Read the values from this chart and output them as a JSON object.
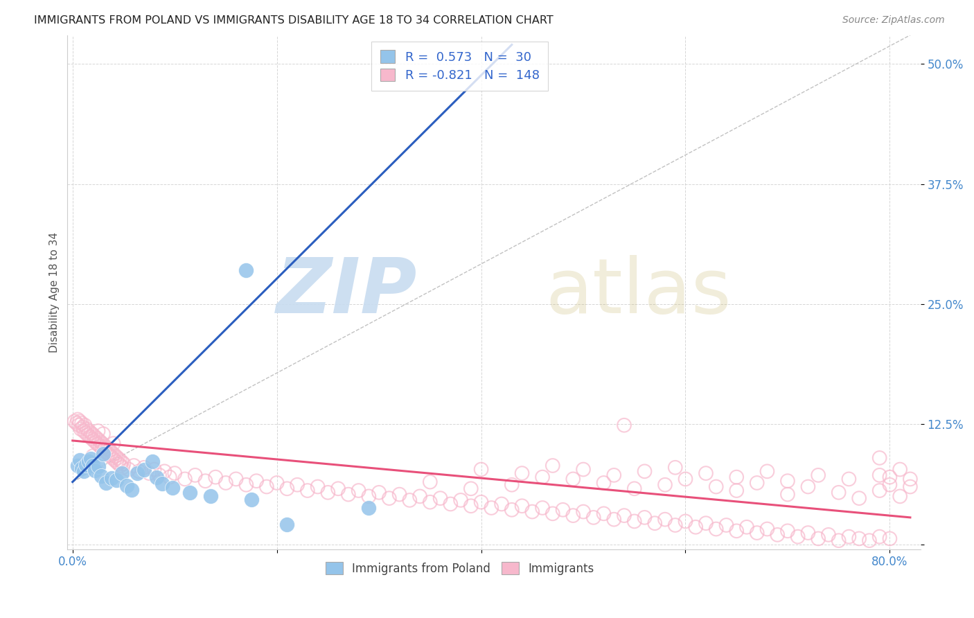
{
  "title": "IMMIGRANTS FROM POLAND VS IMMIGRANTS DISABILITY AGE 18 TO 34 CORRELATION CHART",
  "source": "Source: ZipAtlas.com",
  "ylabel": "Disability Age 18 to 34",
  "x_ticks": [
    0.0,
    0.2,
    0.4,
    0.6,
    0.8
  ],
  "x_tick_labels": [
    "0.0%",
    "",
    "",
    "",
    "80.0%"
  ],
  "y_tick_labels": [
    "",
    "12.5%",
    "25.0%",
    "37.5%",
    "50.0%"
  ],
  "y_ticks": [
    0.0,
    0.125,
    0.25,
    0.375,
    0.5
  ],
  "xlim": [
    -0.005,
    0.83
  ],
  "ylim": [
    -0.005,
    0.53
  ],
  "legend_label_1": "Immigrants from Poland",
  "legend_label_2": "Immigrants",
  "r1": 0.573,
  "n1": 30,
  "r2": -0.821,
  "n2": 148,
  "color_blue": "#94C4EA",
  "color_pink": "#F7B8CC",
  "line_blue": "#2B5EBF",
  "line_pink": "#E8507A",
  "grid_color": "#CCCCCC",
  "background_color": "#FFFFFF",
  "blue_scatter": [
    [
      0.005,
      0.082
    ],
    [
      0.007,
      0.088
    ],
    [
      0.009,
      0.079
    ],
    [
      0.011,
      0.076
    ],
    [
      0.013,
      0.083
    ],
    [
      0.016,
      0.086
    ],
    [
      0.018,
      0.089
    ],
    [
      0.02,
      0.082
    ],
    [
      0.022,
      0.077
    ],
    [
      0.025,
      0.081
    ],
    [
      0.028,
      0.071
    ],
    [
      0.03,
      0.094
    ],
    [
      0.033,
      0.064
    ],
    [
      0.038,
      0.069
    ],
    [
      0.043,
      0.067
    ],
    [
      0.048,
      0.074
    ],
    [
      0.053,
      0.061
    ],
    [
      0.058,
      0.057
    ],
    [
      0.063,
      0.074
    ],
    [
      0.07,
      0.078
    ],
    [
      0.078,
      0.086
    ],
    [
      0.082,
      0.07
    ],
    [
      0.088,
      0.063
    ],
    [
      0.098,
      0.059
    ],
    [
      0.115,
      0.054
    ],
    [
      0.135,
      0.05
    ],
    [
      0.175,
      0.047
    ],
    [
      0.21,
      0.021
    ],
    [
      0.29,
      0.038
    ],
    [
      0.17,
      0.285
    ]
  ],
  "pink_scatter_dense": [
    [
      0.002,
      0.128
    ],
    [
      0.004,
      0.126
    ],
    [
      0.005,
      0.13
    ],
    [
      0.006,
      0.124
    ],
    [
      0.007,
      0.128
    ],
    [
      0.008,
      0.12
    ],
    [
      0.009,
      0.126
    ],
    [
      0.01,
      0.122
    ],
    [
      0.011,
      0.118
    ],
    [
      0.012,
      0.124
    ],
    [
      0.013,
      0.116
    ],
    [
      0.014,
      0.12
    ],
    [
      0.015,
      0.114
    ],
    [
      0.016,
      0.118
    ],
    [
      0.017,
      0.112
    ],
    [
      0.018,
      0.116
    ],
    [
      0.019,
      0.11
    ],
    [
      0.02,
      0.114
    ],
    [
      0.021,
      0.108
    ],
    [
      0.022,
      0.112
    ],
    [
      0.023,
      0.106
    ],
    [
      0.024,
      0.11
    ],
    [
      0.025,
      0.104
    ],
    [
      0.026,
      0.108
    ],
    [
      0.027,
      0.102
    ],
    [
      0.028,
      0.106
    ],
    [
      0.029,
      0.1
    ],
    [
      0.03,
      0.104
    ],
    [
      0.031,
      0.098
    ],
    [
      0.032,
      0.102
    ],
    [
      0.033,
      0.096
    ],
    [
      0.034,
      0.1
    ],
    [
      0.035,
      0.094
    ],
    [
      0.036,
      0.098
    ],
    [
      0.037,
      0.092
    ],
    [
      0.038,
      0.096
    ],
    [
      0.039,
      0.09
    ],
    [
      0.04,
      0.094
    ],
    [
      0.041,
      0.088
    ],
    [
      0.042,
      0.092
    ],
    [
      0.043,
      0.086
    ],
    [
      0.044,
      0.09
    ],
    [
      0.045,
      0.084
    ],
    [
      0.046,
      0.088
    ],
    [
      0.047,
      0.082
    ],
    [
      0.048,
      0.086
    ],
    [
      0.049,
      0.08
    ],
    [
      0.05,
      0.084
    ],
    [
      0.055,
      0.078
    ],
    [
      0.06,
      0.082
    ],
    [
      0.065,
      0.076
    ],
    [
      0.07,
      0.08
    ],
    [
      0.075,
      0.074
    ],
    [
      0.08,
      0.078
    ],
    [
      0.085,
      0.072
    ],
    [
      0.09,
      0.076
    ],
    [
      0.095,
      0.07
    ],
    [
      0.1,
      0.074
    ],
    [
      0.11,
      0.068
    ],
    [
      0.12,
      0.072
    ],
    [
      0.13,
      0.066
    ],
    [
      0.14,
      0.07
    ],
    [
      0.15,
      0.064
    ],
    [
      0.16,
      0.068
    ],
    [
      0.17,
      0.062
    ],
    [
      0.18,
      0.066
    ],
    [
      0.19,
      0.06
    ],
    [
      0.2,
      0.064
    ],
    [
      0.21,
      0.058
    ],
    [
      0.22,
      0.062
    ],
    [
      0.23,
      0.056
    ],
    [
      0.24,
      0.06
    ],
    [
      0.25,
      0.054
    ],
    [
      0.26,
      0.058
    ],
    [
      0.27,
      0.052
    ],
    [
      0.28,
      0.056
    ],
    [
      0.29,
      0.05
    ],
    [
      0.3,
      0.054
    ],
    [
      0.31,
      0.048
    ],
    [
      0.32,
      0.052
    ],
    [
      0.33,
      0.046
    ],
    [
      0.34,
      0.05
    ],
    [
      0.35,
      0.044
    ],
    [
      0.36,
      0.048
    ],
    [
      0.37,
      0.042
    ],
    [
      0.38,
      0.046
    ],
    [
      0.39,
      0.04
    ],
    [
      0.4,
      0.044
    ],
    [
      0.41,
      0.038
    ],
    [
      0.42,
      0.042
    ],
    [
      0.43,
      0.036
    ],
    [
      0.44,
      0.04
    ],
    [
      0.45,
      0.034
    ],
    [
      0.46,
      0.038
    ],
    [
      0.47,
      0.032
    ],
    [
      0.48,
      0.036
    ],
    [
      0.49,
      0.03
    ],
    [
      0.5,
      0.034
    ],
    [
      0.51,
      0.028
    ],
    [
      0.52,
      0.032
    ],
    [
      0.53,
      0.026
    ],
    [
      0.54,
      0.03
    ],
    [
      0.55,
      0.024
    ],
    [
      0.56,
      0.028
    ],
    [
      0.57,
      0.022
    ],
    [
      0.58,
      0.026
    ],
    [
      0.59,
      0.02
    ],
    [
      0.6,
      0.024
    ],
    [
      0.61,
      0.018
    ],
    [
      0.62,
      0.022
    ],
    [
      0.63,
      0.016
    ],
    [
      0.64,
      0.02
    ],
    [
      0.65,
      0.014
    ],
    [
      0.66,
      0.018
    ],
    [
      0.67,
      0.012
    ],
    [
      0.68,
      0.016
    ],
    [
      0.69,
      0.01
    ],
    [
      0.7,
      0.014
    ],
    [
      0.71,
      0.008
    ],
    [
      0.72,
      0.012
    ],
    [
      0.73,
      0.006
    ],
    [
      0.74,
      0.01
    ],
    [
      0.75,
      0.004
    ],
    [
      0.76,
      0.008
    ],
    [
      0.77,
      0.006
    ],
    [
      0.78,
      0.004
    ],
    [
      0.79,
      0.008
    ],
    [
      0.8,
      0.006
    ]
  ],
  "pink_scatter_spread": [
    [
      0.35,
      0.065
    ],
    [
      0.39,
      0.058
    ],
    [
      0.43,
      0.062
    ],
    [
      0.46,
      0.07
    ],
    [
      0.49,
      0.068
    ],
    [
      0.52,
      0.064
    ],
    [
      0.55,
      0.058
    ],
    [
      0.58,
      0.062
    ],
    [
      0.6,
      0.068
    ],
    [
      0.63,
      0.06
    ],
    [
      0.65,
      0.056
    ],
    [
      0.67,
      0.064
    ],
    [
      0.7,
      0.052
    ],
    [
      0.72,
      0.06
    ],
    [
      0.75,
      0.054
    ],
    [
      0.77,
      0.048
    ],
    [
      0.79,
      0.056
    ],
    [
      0.81,
      0.05
    ],
    [
      0.4,
      0.078
    ],
    [
      0.44,
      0.074
    ],
    [
      0.47,
      0.082
    ],
    [
      0.5,
      0.078
    ],
    [
      0.53,
      0.072
    ],
    [
      0.56,
      0.076
    ],
    [
      0.59,
      0.08
    ],
    [
      0.62,
      0.074
    ],
    [
      0.65,
      0.07
    ],
    [
      0.68,
      0.076
    ],
    [
      0.7,
      0.066
    ],
    [
      0.73,
      0.072
    ],
    [
      0.76,
      0.068
    ],
    [
      0.79,
      0.072
    ],
    [
      0.54,
      0.124
    ],
    [
      0.8,
      0.07
    ],
    [
      0.82,
      0.068
    ],
    [
      0.79,
      0.09
    ],
    [
      0.02,
      0.092
    ],
    [
      0.025,
      0.118
    ],
    [
      0.03,
      0.115
    ],
    [
      0.04,
      0.105
    ],
    [
      0.8,
      0.062
    ],
    [
      0.81,
      0.078
    ],
    [
      0.82,
      0.06
    ]
  ],
  "blue_line_x": [
    0.0,
    0.43
  ],
  "blue_line_y": [
    0.065,
    0.52
  ],
  "pink_line_x": [
    0.0,
    0.82
  ],
  "pink_line_y": [
    0.108,
    0.028
  ],
  "diag_line_x": [
    0.0,
    0.82
  ],
  "diag_line_y": [
    0.065,
    0.53
  ]
}
